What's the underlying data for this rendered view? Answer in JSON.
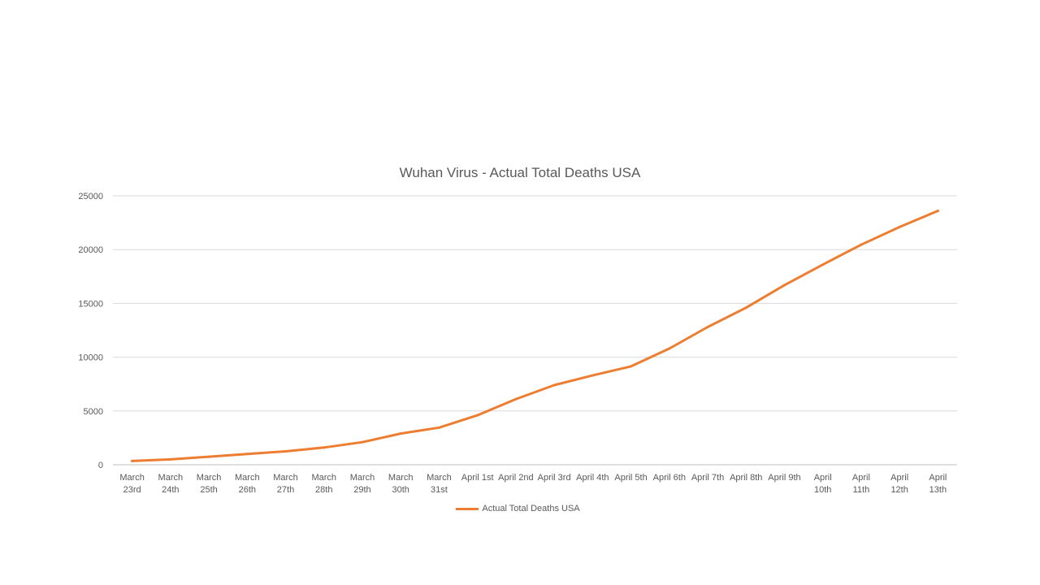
{
  "chart_data": {
    "type": "line",
    "title": "Wuhan Virus - Actual Total Deaths USA",
    "xlabel": "",
    "ylabel": "",
    "categories": [
      [
        "March",
        "23rd"
      ],
      [
        "March",
        "24th"
      ],
      [
        "March",
        "25th"
      ],
      [
        "March",
        "26th"
      ],
      [
        "March",
        "27th"
      ],
      [
        "March",
        "28th"
      ],
      [
        "March",
        "29th"
      ],
      [
        "March",
        "30th"
      ],
      [
        "March",
        "31st"
      ],
      [
        "April 1st"
      ],
      [
        "April 2nd"
      ],
      [
        "April 3rd"
      ],
      [
        "April 4th"
      ],
      [
        "April 5th"
      ],
      [
        "April 6th"
      ],
      [
        "April 7th"
      ],
      [
        "April 8th"
      ],
      [
        "April 9th"
      ],
      [
        "April",
        "10th"
      ],
      [
        "April",
        "11th"
      ],
      [
        "April",
        "12th"
      ],
      [
        "April",
        "13th"
      ]
    ],
    "series": [
      {
        "name": "Actual Total Deaths USA",
        "color": "#ED7D31",
        "values": [
          350,
          500,
          750,
          1000,
          1250,
          1600,
          2100,
          2900,
          3450,
          4600,
          6100,
          7400,
          8300,
          9150,
          10800,
          12800,
          14600,
          16700,
          18600,
          20450,
          22100,
          23600
        ]
      }
    ],
    "ylim": [
      0,
      25000
    ],
    "yticks": [
      0,
      5000,
      10000,
      15000,
      20000,
      25000
    ],
    "grid": true,
    "legend_position": "bottom"
  }
}
